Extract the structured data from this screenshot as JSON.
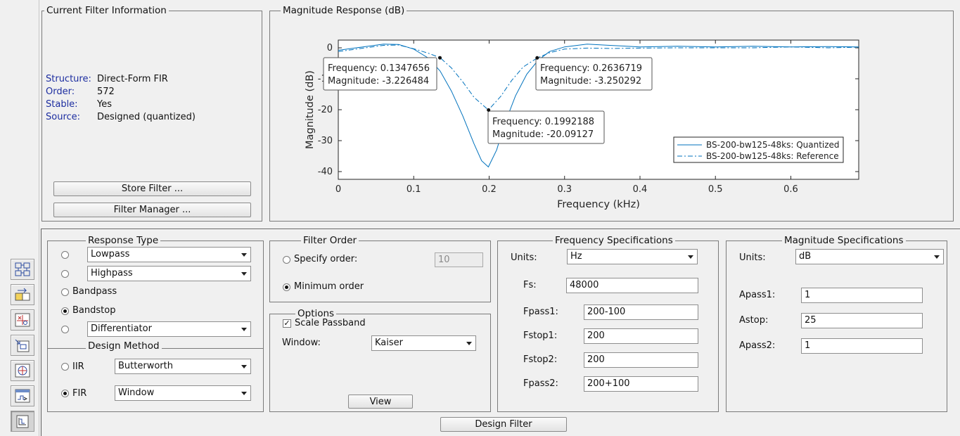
{
  "toolbar": {
    "icons": [
      "filter-design-icon",
      "transform-icon",
      "pole-zero-icon",
      "import-filter-icon",
      "realize-model-icon",
      "quantize-icon",
      "design-filter-icon"
    ]
  },
  "filter_info": {
    "title": "Current Filter Information",
    "structure_key": "Structure:",
    "structure_val": "Direct-Form FIR",
    "order_key": "Order:",
    "order_val": "572",
    "stable_key": "Stable:",
    "stable_val": "Yes",
    "source_key": "Source:",
    "source_val": "Designed (quantized)",
    "store_label": "Store Filter ...",
    "manager_label": "Filter Manager ..."
  },
  "chart_panel": {
    "title": "Magnitude Response (dB)"
  },
  "chart_data": {
    "type": "line",
    "xlabel": "Frequency (kHz)",
    "ylabel": "Magnitude (dB)",
    "xlim": [
      0,
      0.69
    ],
    "ylim": [
      -42.5,
      2.5
    ],
    "xticks": [
      0,
      0.1,
      0.2,
      0.3,
      0.4,
      0.5,
      0.6
    ],
    "xtick_labels": [
      "0",
      "0.1",
      "0.2",
      "0.3",
      "0.4",
      "0.5",
      "0.6"
    ],
    "yticks": [
      0,
      -10,
      -20,
      -30,
      -40
    ],
    "ytick_labels": [
      "0",
      "-10",
      "-20",
      "-30",
      "-40"
    ],
    "legend_position": "bottom-right",
    "series": [
      {
        "name": "BS-200-bw125-48ks: Quantized",
        "style": "solid",
        "color": "#0072bd",
        "x": [
          0,
          0.03,
          0.06,
          0.08,
          0.1,
          0.12,
          0.135,
          0.15,
          0.165,
          0.18,
          0.19,
          0.199,
          0.21,
          0.22,
          0.235,
          0.25,
          0.265,
          0.28,
          0.3,
          0.33,
          0.36,
          0.4,
          0.45,
          0.5,
          0.55,
          0.6,
          0.65,
          0.69
        ],
        "y": [
          -0.8,
          0.2,
          1.2,
          1.1,
          -0.4,
          -3.4,
          -7.5,
          -14,
          -22,
          -31,
          -36.5,
          -38.5,
          -33,
          -25,
          -15.5,
          -8.5,
          -4,
          -1.2,
          0.3,
          1.2,
          0.8,
          0.3,
          0.5,
          0.3,
          0.5,
          0.3,
          0.4,
          0.3
        ]
      },
      {
        "name": "BS-200-bw125-48ks: Reference",
        "style": "dash-dot",
        "color": "#0072bd",
        "x": [
          0,
          0.03,
          0.06,
          0.08,
          0.1,
          0.12,
          0.135,
          0.15,
          0.165,
          0.18,
          0.199,
          0.215,
          0.23,
          0.245,
          0.264,
          0.28,
          0.3,
          0.33,
          0.36,
          0.4,
          0.45,
          0.5,
          0.55,
          0.6,
          0.65,
          0.69
        ],
        "y": [
          -1.2,
          -0.2,
          0.8,
          0.9,
          -0.3,
          -1.8,
          -3.2,
          -6.5,
          -11,
          -16,
          -20.1,
          -15.8,
          -10.5,
          -6.2,
          -3.25,
          -1.6,
          -0.4,
          -0.1,
          -0.2,
          -0.1,
          0,
          0,
          0,
          0.3,
          0,
          0.2
        ]
      }
    ],
    "datatips": [
      {
        "x": 0.1347656,
        "y": -3.226484,
        "freq_text": "Frequency: 0.1347656",
        "mag_text": "Magnitude: -3.226484"
      },
      {
        "x": 0.2636719,
        "y": -3.250292,
        "freq_text": "Frequency: 0.2636719",
        "mag_text": "Magnitude: -3.250292"
      },
      {
        "x": 0.1992188,
        "y": -20.09127,
        "freq_text": "Frequency: 0.1992188",
        "mag_text": "Magnitude: -20.09127"
      }
    ]
  },
  "response_type": {
    "title": "Response Type",
    "lowpass": "Lowpass",
    "highpass": "Highpass",
    "bandpass": "Bandpass",
    "bandstop": "Bandstop",
    "differentiator": "Differentiator",
    "selected": "Bandstop"
  },
  "design_method": {
    "title": "Design Method",
    "iir_label": "IIR",
    "iir_value": "Butterworth",
    "fir_label": "FIR",
    "fir_value": "Window",
    "selected": "FIR"
  },
  "filter_order": {
    "title": "Filter Order",
    "specify_label": "Specify order:",
    "specify_value": "10",
    "minimum_label": "Minimum order",
    "selected": "Minimum order"
  },
  "options": {
    "title": "Options",
    "scale_label": "Scale Passband",
    "scale_checked": true,
    "window_label": "Window:",
    "window_value": "Kaiser",
    "view_label": "View"
  },
  "freq_spec": {
    "title": "Frequency Specifications",
    "units_label": "Units:",
    "units_value": "Hz",
    "fs_label": "Fs:",
    "fs_value": "48000",
    "fpass1_label": "Fpass1:",
    "fpass1_value": "200-100",
    "fstop1_label": "Fstop1:",
    "fstop1_value": "200",
    "fstop2_label": "Fstop2:",
    "fstop2_value": "200",
    "fpass2_label": "Fpass2:",
    "fpass2_value": "200+100"
  },
  "mag_spec": {
    "title": "Magnitude Specifications",
    "units_label": "Units:",
    "units_value": "dB",
    "apass1_label": "Apass1:",
    "apass1_value": "1",
    "astop_label": "Astop:",
    "astop_value": "25",
    "apass2_label": "Apass2:",
    "apass2_value": "1"
  },
  "design_button": "Design Filter",
  "colors": {
    "line": "#0072bd",
    "info_key": "#1c2da0",
    "background": "#f0f0f0"
  }
}
